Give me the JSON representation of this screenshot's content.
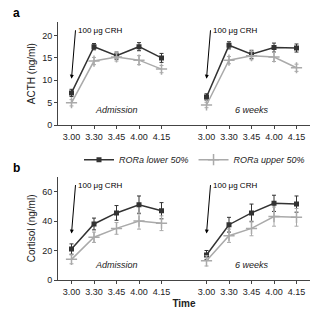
{
  "chart_data": [
    {
      "type": "line",
      "title": "a",
      "ylabel": "ACTH (ng/ml)",
      "categories": [
        "3.00",
        "3.30",
        "3.45",
        "4.00",
        "4.15"
      ],
      "ylim": [
        0,
        23
      ],
      "yticks": [
        0,
        5,
        10,
        15,
        20
      ],
      "grid": false,
      "sections": [
        {
          "label": "Admission",
          "annotation": "100 μg CRH",
          "series": [
            {
              "name": "RORa lower 50%",
              "color": "#333333",
              "marker": "square",
              "values": [
                7.2,
                17.5,
                15.5,
                17.5,
                15.0
              ],
              "errors": [
                0.8,
                0.7,
                0.8,
                0.9,
                1.0
              ]
            },
            {
              "name": "RORa upper 50%",
              "color": "#aaaaaa",
              "marker": "plus",
              "values": [
                5.0,
                14.3,
                15.2,
                14.5,
                12.5
              ],
              "errors": [
                0.7,
                0.8,
                0.9,
                1.0,
                0.8
              ]
            }
          ]
        },
        {
          "label": "6 weeks",
          "annotation": "100 μg CRH",
          "series": [
            {
              "name": "RORa lower 50%",
              "color": "#333333",
              "marker": "square",
              "values": [
                6.3,
                17.8,
                15.8,
                17.3,
                17.2
              ],
              "errors": [
                0.7,
                0.8,
                0.9,
                1.0,
                0.9
              ]
            },
            {
              "name": "RORa upper 50%",
              "color": "#aaaaaa",
              "marker": "plus",
              "values": [
                4.5,
                14.5,
                15.5,
                15.2,
                12.8
              ],
              "errors": [
                0.6,
                0.8,
                0.9,
                1.0,
                0.8
              ]
            }
          ]
        }
      ]
    },
    {
      "type": "line",
      "title": "b",
      "ylabel": "Cortisol (ng/ml)",
      "xlabel": "Time",
      "categories": [
        "3.00",
        "3.30",
        "3.45",
        "4.00",
        "4.15"
      ],
      "ylim": [
        0,
        70
      ],
      "yticks": [
        0,
        20,
        40,
        60
      ],
      "grid": false,
      "legend": "upper right",
      "sections": [
        {
          "label": "Admission",
          "annotation": "100 μg CRH",
          "series": [
            {
              "name": "RORa lower 50%",
              "color": "#333333",
              "marker": "square",
              "values": [
                21.0,
                38.0,
                45.5,
                51.0,
                47.0
              ],
              "errors": [
                3.5,
                4.0,
                5.0,
                6.0,
                5.5
              ]
            },
            {
              "name": "RORa upper 50%",
              "color": "#aaaaaa",
              "marker": "plus",
              "values": [
                14.0,
                29.0,
                35.0,
                40.0,
                38.5
              ],
              "errors": [
                3.0,
                3.5,
                4.0,
                5.5,
                5.0
              ]
            }
          ]
        },
        {
          "label": "6 weeks",
          "annotation": "100 μg CRH",
          "series": [
            {
              "name": "RORa lower 50%",
              "color": "#333333",
              "marker": "square",
              "values": [
                17.0,
                37.5,
                45.5,
                52.0,
                51.5
              ],
              "errors": [
                3.0,
                5.0,
                6.0,
                5.5,
                5.5
              ]
            },
            {
              "name": "RORa upper 50%",
              "color": "#aaaaaa",
              "marker": "plus",
              "values": [
                13.0,
                30.0,
                35.0,
                43.0,
                42.5
              ],
              "errors": [
                3.5,
                4.5,
                5.0,
                6.5,
                6.0
              ]
            }
          ]
        }
      ]
    }
  ]
}
